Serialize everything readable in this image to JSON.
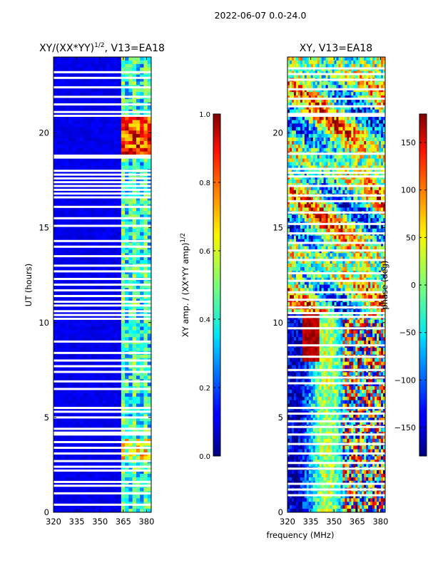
{
  "suptitle": "2022-06-07 0.0-24.0",
  "shared_xlabel": "frequency (MHz)",
  "chart_data": [
    {
      "type": "heatmap",
      "title_main": "XY/(XX*YY)",
      "title_sup": "1/2",
      "title_tail": ", V13=EA18",
      "xlabel": "frequency (MHz)",
      "ylabel": "UT (hours)",
      "xlim": [
        320,
        383
      ],
      "ylim": [
        0,
        24
      ],
      "xticks": [
        320,
        335,
        350,
        365,
        380
      ],
      "yticks": [
        0,
        5,
        10,
        15,
        20
      ],
      "colorbar": {
        "label_main": "XY amp. / (XX*YY amp)",
        "label_sup": "1/2",
        "range": [
          0.0,
          1.0
        ],
        "ticks": [
          "0.0",
          "0.2",
          "0.4",
          "0.6",
          "0.8",
          "1.0"
        ],
        "tick_values": [
          0.0,
          0.2,
          0.4,
          0.6,
          0.8,
          1.0
        ]
      },
      "gaps_ut": [
        23.2,
        22.9,
        22.4,
        21.9,
        21.5,
        21.1,
        20.9,
        18.8,
        18.7,
        18.0,
        17.8,
        17.6,
        17.4,
        17.2,
        17.0,
        16.8,
        16.6,
        16.1,
        15.5,
        15.1,
        14.3,
        14.0,
        13.5,
        13.0,
        12.7,
        12.3,
        12.0,
        11.7,
        11.4,
        11.1,
        10.9,
        10.6,
        10.4,
        10.2,
        9.0,
        8.4,
        8.0,
        7.7,
        7.4,
        6.9,
        6.5,
        5.5,
        5.3,
        5.0,
        4.4,
        4.2,
        4.1,
        3.7,
        3.4,
        3.1,
        2.7,
        2.4,
        2.2,
        1.6,
        1.4,
        1.0,
        0.4
      ],
      "high_region": {
        "freq": [
          363,
          382
        ],
        "ut": [
          18.9,
          20.8
        ],
        "value": 0.9
      },
      "high_region2": {
        "freq": [
          363,
          382
        ],
        "ut": [
          2.7,
          3.9
        ],
        "value": 0.5
      },
      "bright_band": {
        "freq": [
          363,
          382
        ],
        "value": 0.45
      }
    },
    {
      "type": "heatmap",
      "title": "XY, V13=EA18",
      "xlabel": "frequency (MHz)",
      "ylabel": "",
      "xlim": [
        320,
        383
      ],
      "ylim": [
        0,
        24
      ],
      "xticks": [
        320,
        335,
        350,
        365,
        380
      ],
      "yticks": [
        0,
        5,
        10,
        15,
        20
      ],
      "colorbar": {
        "label": "phase (deg)",
        "range": [
          -180,
          180
        ],
        "ticks": [
          "150",
          "100",
          "50",
          "0",
          "−50",
          "−100",
          "−150"
        ],
        "tick_values": [
          150,
          100,
          50,
          0,
          -50,
          -100,
          -150
        ]
      },
      "gaps_ut": [
        23.4,
        23.1,
        22.8,
        22.3,
        21.8,
        21.4,
        21.0,
        20.9,
        18.9,
        18.1,
        17.9,
        17.7,
        17.2,
        16.7,
        16.4,
        15.8,
        15.2,
        14.7,
        14.2,
        13.8,
        13.3,
        12.6,
        12.2,
        11.6,
        11.2,
        10.8,
        10.5,
        10.3,
        9.7,
        8.8,
        8.2,
        7.5,
        7.1,
        6.8,
        5.5,
        5.2,
        4.8,
        4.5,
        4.1,
        3.6,
        3.1,
        2.6,
        2.3,
        1.5,
        1.2,
        0.9
      ]
    }
  ]
}
